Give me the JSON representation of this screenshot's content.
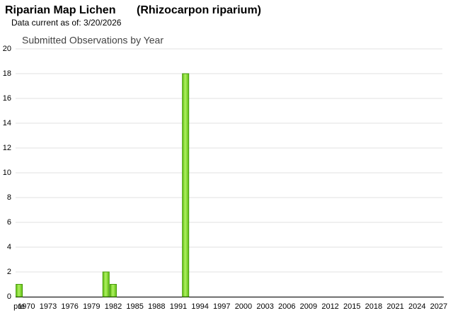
{
  "chart_data": {
    "type": "bar",
    "title": "Riparian Map Lichen",
    "subtitle": "(Rhizocarpon riparium)",
    "note": "Data current as of: 3/20/2026",
    "chart_title": "Submitted Observations by Year",
    "categories": [
      "pre",
      "1970",
      null,
      null,
      "1973",
      null,
      null,
      "1976",
      null,
      null,
      "1979",
      null,
      null,
      "1982",
      null,
      null,
      "1985",
      null,
      null,
      "1988",
      null,
      null,
      "1991",
      null,
      null,
      "1994",
      null,
      null,
      "1997",
      null,
      null,
      "2000",
      null,
      null,
      "2003",
      null,
      null,
      "2006",
      null,
      null,
      "2009",
      null,
      null,
      "2012",
      null,
      null,
      "2015",
      null,
      null,
      "2018",
      null,
      null,
      "2021",
      null,
      null,
      "2024",
      null,
      null,
      "2027"
    ],
    "values": [
      1,
      0,
      0,
      0,
      0,
      0,
      0,
      0,
      0,
      0,
      0,
      0,
      2,
      1,
      0,
      0,
      0,
      0,
      0,
      0,
      0,
      0,
      0,
      18,
      0,
      0,
      0,
      0,
      0,
      0,
      0,
      0,
      0,
      0,
      0,
      0,
      0,
      0,
      0,
      0,
      0,
      0,
      0,
      0,
      0,
      0,
      0,
      0,
      0,
      0,
      0,
      0,
      0,
      0,
      0,
      0,
      0,
      0,
      0
    ],
    "color": "#7ed321",
    "ylim": [
      0,
      20
    ],
    "yticks": [
      0,
      2,
      4,
      6,
      8,
      10,
      12,
      14,
      16,
      18,
      20
    ],
    "grid": true
  }
}
